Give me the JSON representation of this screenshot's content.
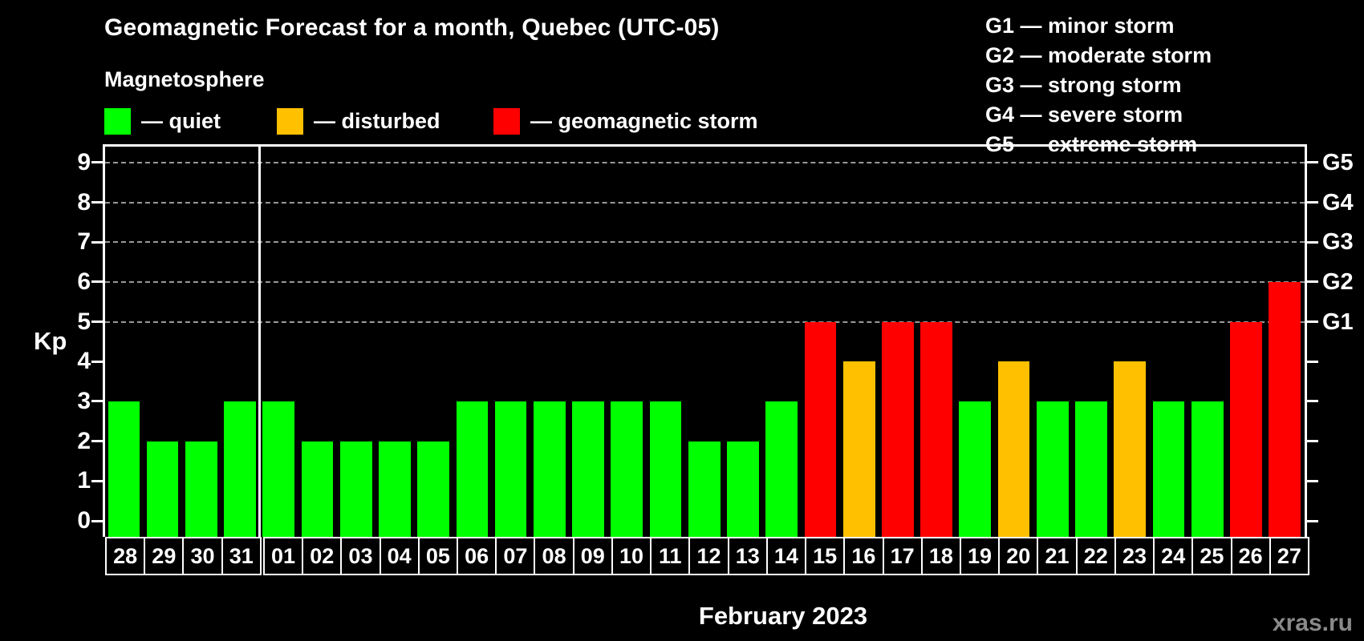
{
  "title": "Geomagnetic Forecast for a month, Quebec (UTC-05)",
  "subtitle": "Magnetosphere",
  "legend": {
    "items": [
      {
        "name": "quiet",
        "label": "— quiet",
        "color": "#00ff00"
      },
      {
        "name": "disturbed",
        "label": "— disturbed",
        "color": "#ffc000"
      },
      {
        "name": "storm",
        "label": "— geomagnetic storm",
        "color": "#ff0000"
      }
    ]
  },
  "g_legend": {
    "items": [
      "G1 — minor storm",
      "G2 — moderate storm",
      "G3 — strong storm",
      "G4 — severe storm",
      "G5 — extreme storm"
    ]
  },
  "axes": {
    "kp_label": "Kp",
    "kp_ticks": [
      "0",
      "1",
      "2",
      "3",
      "4",
      "5",
      "6",
      "7",
      "8",
      "9"
    ],
    "g_labels": [
      {
        "kp": 5,
        "label": "G1"
      },
      {
        "kp": 6,
        "label": "G2"
      },
      {
        "kp": 7,
        "label": "G3"
      },
      {
        "kp": 8,
        "label": "G4"
      },
      {
        "kp": 9,
        "label": "G5"
      }
    ]
  },
  "xlabel": "February 2023",
  "watermark": "xras.ru",
  "chart_data": {
    "type": "bar",
    "title": "Geomagnetic Forecast for a month, Quebec (UTC-05)",
    "ylabel": "Kp",
    "ylim": [
      0,
      9
    ],
    "gridlines_at": [
      5,
      6,
      7,
      8,
      9
    ],
    "grid_style": "dashed",
    "legend_position": "top",
    "month_separator_after_index": 3,
    "categories": [
      "28",
      "29",
      "30",
      "31",
      "01",
      "02",
      "03",
      "04",
      "05",
      "06",
      "07",
      "08",
      "09",
      "10",
      "11",
      "12",
      "13",
      "14",
      "15",
      "16",
      "17",
      "18",
      "19",
      "20",
      "21",
      "22",
      "23",
      "24",
      "25",
      "26",
      "27"
    ],
    "values": [
      3,
      2,
      2,
      3,
      3,
      2,
      2,
      2,
      2,
      3,
      3,
      3,
      3,
      3,
      3,
      2,
      2,
      3,
      5,
      4,
      5,
      5,
      3,
      4,
      3,
      3,
      4,
      3,
      3,
      5,
      6
    ],
    "statuses": [
      "quiet",
      "quiet",
      "quiet",
      "quiet",
      "quiet",
      "quiet",
      "quiet",
      "quiet",
      "quiet",
      "quiet",
      "quiet",
      "quiet",
      "quiet",
      "quiet",
      "quiet",
      "quiet",
      "quiet",
      "quiet",
      "storm",
      "disturbed",
      "storm",
      "storm",
      "quiet",
      "disturbed",
      "quiet",
      "quiet",
      "disturbed",
      "quiet",
      "quiet",
      "storm",
      "storm"
    ],
    "colors": {
      "quiet": "#00ff00",
      "disturbed": "#ffc000",
      "storm": "#ff0000"
    }
  }
}
